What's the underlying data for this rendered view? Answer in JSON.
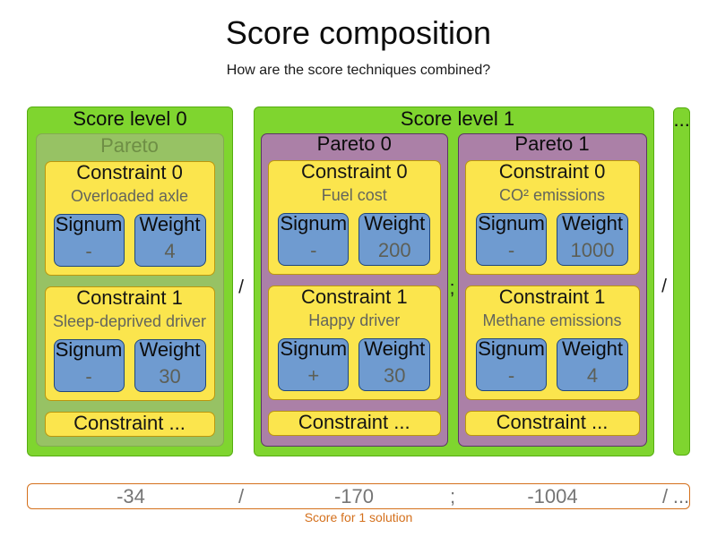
{
  "title": "Score composition",
  "subtitle": "How are the score techniques combined?",
  "shared_labels": {
    "signum": "Signum",
    "weight": "Weight"
  },
  "levels": [
    {
      "label": "Score level 0",
      "paretos": [
        {
          "label": "Pareto",
          "disabled": true,
          "constraints": [
            {
              "title": "Constraint 0",
              "description": "Overloaded axle",
              "signum_value": "-",
              "weight_value": "4"
            },
            {
              "title": "Constraint 1",
              "description": "Sleep-deprived driver",
              "signum_value": "-",
              "weight_value": "30"
            },
            {
              "title": "Constraint ..."
            }
          ]
        }
      ]
    },
    {
      "label": "Score level 1",
      "paretos": [
        {
          "label": "Pareto 0",
          "disabled": false,
          "constraints": [
            {
              "title": "Constraint 0",
              "description": "Fuel cost",
              "signum_value": "-",
              "weight_value": "200"
            },
            {
              "title": "Constraint 1",
              "description": "Happy driver",
              "signum_value": "+",
              "weight_value": "30"
            },
            {
              "title": "Constraint ..."
            }
          ]
        },
        {
          "label": "Pareto 1",
          "disabled": false,
          "constraints": [
            {
              "title": "Constraint 0",
              "description": "CO² emissions",
              "signum_value": "-",
              "weight_value": "1000"
            },
            {
              "title": "Constraint 1",
              "description": "Methane emissions",
              "signum_value": "-",
              "weight_value": "4"
            },
            {
              "title": "Constraint ..."
            }
          ]
        }
      ]
    }
  ],
  "more_levels_label": "...",
  "separators": [
    {
      "symbol": "/"
    },
    {
      "symbol": ";"
    },
    {
      "symbol": "/"
    }
  ],
  "score_bar": {
    "items": [
      {
        "text": "-34"
      },
      {
        "text": "/"
      },
      {
        "text": "-170"
      },
      {
        "text": ";"
      },
      {
        "text": "-1004"
      },
      {
        "text": "/"
      },
      {
        "text": "..."
      }
    ]
  },
  "caption": "Score for 1 solution",
  "colors": {
    "green_fill": "#7fd52f",
    "green_border": "#56ad10",
    "pareto_disabled_fill": "#97c264",
    "pareto_disabled_border": "#83aa51",
    "pareto_disabled_text": "#6e8e45",
    "purple_fill": "#ab80a7",
    "purple_border": "#5c3566",
    "yellow_fill": "#fbe54d",
    "yellow_border": "#bb970e",
    "blue_fill": "#6f9bd0",
    "blue_border": "#20477c",
    "desc_gray": "#63655c",
    "value_gray": "#5d5f56",
    "bar_gray": "#757575",
    "orange": "#d4701c"
  }
}
